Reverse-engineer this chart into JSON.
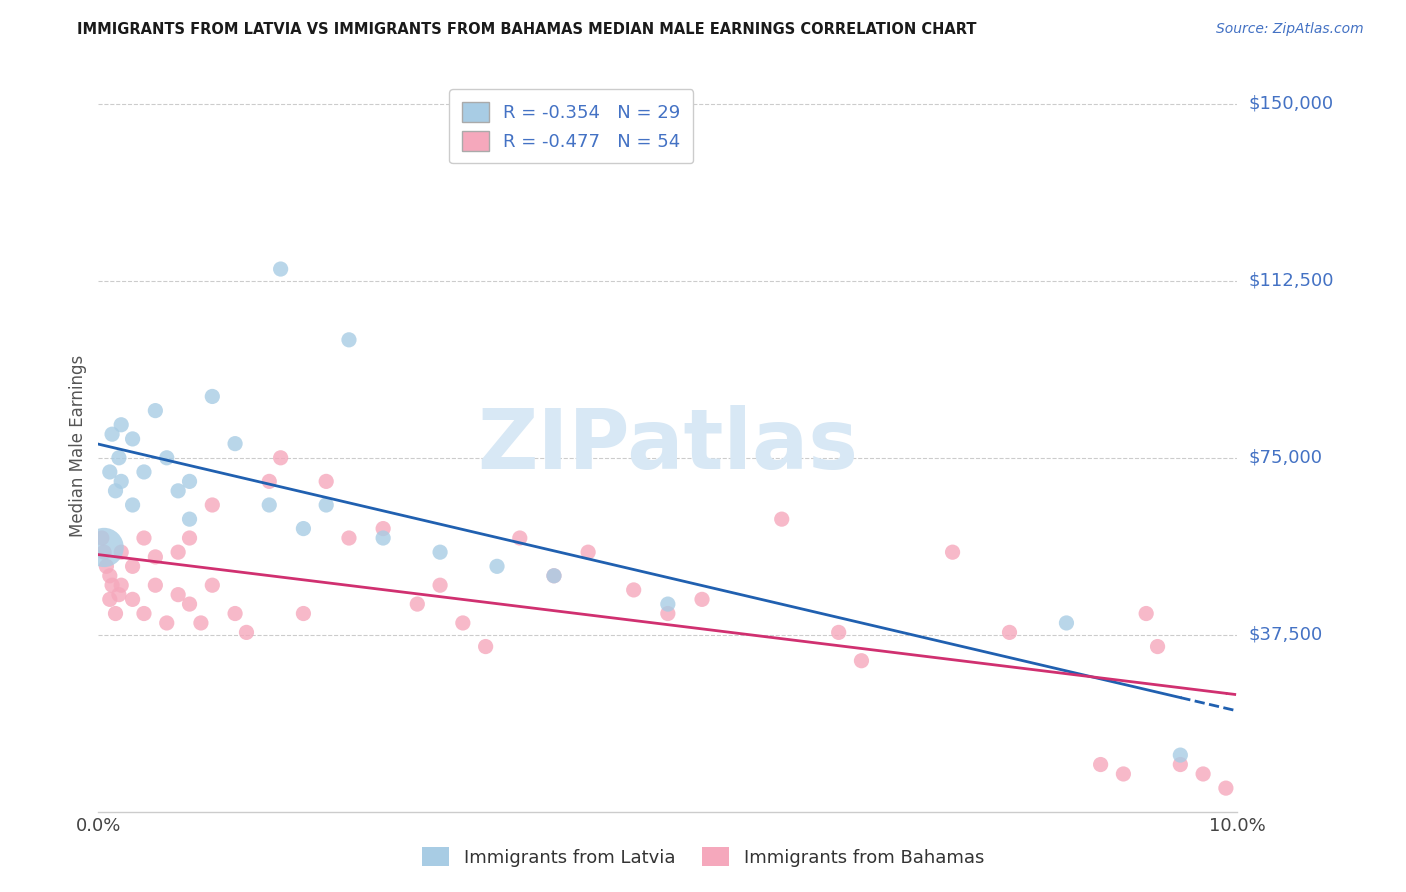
{
  "title": "IMMIGRANTS FROM LATVIA VS IMMIGRANTS FROM BAHAMAS MEDIAN MALE EARNINGS CORRELATION CHART",
  "source": "Source: ZipAtlas.com",
  "ylabel": "Median Male Earnings",
  "R_latvia": -0.354,
  "N_latvia": 29,
  "R_bahamas": -0.477,
  "N_bahamas": 54,
  "color_latvia": "#a8cce4",
  "color_bahamas": "#f5a8bc",
  "color_latvia_line": "#2060b0",
  "color_bahamas_line": "#d03070",
  "watermark_text": "ZIPatlas",
  "watermark_color": "#d8e8f5",
  "background_color": "#ffffff",
  "grid_color": "#cccccc",
  "ytick_color": "#4472c4",
  "title_color": "#1a1a1a",
  "label_color": "#555555",
  "legend_label_latvia": "R = -0.354   N = 29",
  "legend_label_bahamas": "R = -0.477   N = 54",
  "bottom_label_latvia": "Immigrants from Latvia",
  "bottom_label_bahamas": "Immigrants from Bahamas",
  "latvia_x": [
    0.0005,
    0.001,
    0.0012,
    0.0015,
    0.0018,
    0.002,
    0.002,
    0.003,
    0.003,
    0.004,
    0.005,
    0.006,
    0.007,
    0.008,
    0.008,
    0.01,
    0.012,
    0.015,
    0.018,
    0.02,
    0.025,
    0.03,
    0.035,
    0.04,
    0.022,
    0.016,
    0.05,
    0.085,
    0.095
  ],
  "latvia_y": [
    56000,
    72000,
    80000,
    68000,
    75000,
    82000,
    70000,
    79000,
    65000,
    72000,
    85000,
    75000,
    68000,
    62000,
    70000,
    88000,
    78000,
    65000,
    60000,
    65000,
    58000,
    55000,
    52000,
    50000,
    100000,
    115000,
    44000,
    40000,
    12000
  ],
  "latvia_sizes": [
    25,
    25,
    25,
    25,
    25,
    25,
    25,
    25,
    25,
    25,
    25,
    25,
    25,
    25,
    25,
    25,
    25,
    25,
    25,
    25,
    25,
    25,
    25,
    25,
    25,
    25,
    25,
    25,
    25
  ],
  "latvia_large_idx": 0,
  "latvia_large_size": 600,
  "bahamas_x": [
    0.0003,
    0.0005,
    0.0007,
    0.001,
    0.001,
    0.0012,
    0.0015,
    0.0018,
    0.002,
    0.002,
    0.003,
    0.003,
    0.004,
    0.004,
    0.005,
    0.005,
    0.006,
    0.007,
    0.007,
    0.008,
    0.008,
    0.009,
    0.01,
    0.01,
    0.012,
    0.013,
    0.015,
    0.016,
    0.018,
    0.02,
    0.022,
    0.025,
    0.028,
    0.03,
    0.032,
    0.034,
    0.037,
    0.04,
    0.043,
    0.047,
    0.05,
    0.053,
    0.06,
    0.065,
    0.067,
    0.075,
    0.08,
    0.088,
    0.09,
    0.092,
    0.093,
    0.095,
    0.097,
    0.099
  ],
  "bahamas_y": [
    58000,
    55000,
    52000,
    50000,
    45000,
    48000,
    42000,
    46000,
    55000,
    48000,
    52000,
    45000,
    58000,
    42000,
    48000,
    54000,
    40000,
    55000,
    46000,
    58000,
    44000,
    40000,
    65000,
    48000,
    42000,
    38000,
    70000,
    75000,
    42000,
    70000,
    58000,
    60000,
    44000,
    48000,
    40000,
    35000,
    58000,
    50000,
    55000,
    47000,
    42000,
    45000,
    62000,
    38000,
    32000,
    55000,
    38000,
    10000,
    8000,
    42000,
    35000,
    10000,
    8000,
    5000
  ],
  "ytick_vals": [
    37500,
    75000,
    112500,
    150000
  ],
  "ytick_labels": [
    "$37,500",
    "$75,000",
    "$112,500",
    "$150,000"
  ],
  "xmin": 0.0,
  "xmax": 0.1,
  "ymin": 0,
  "ymax": 155000
}
